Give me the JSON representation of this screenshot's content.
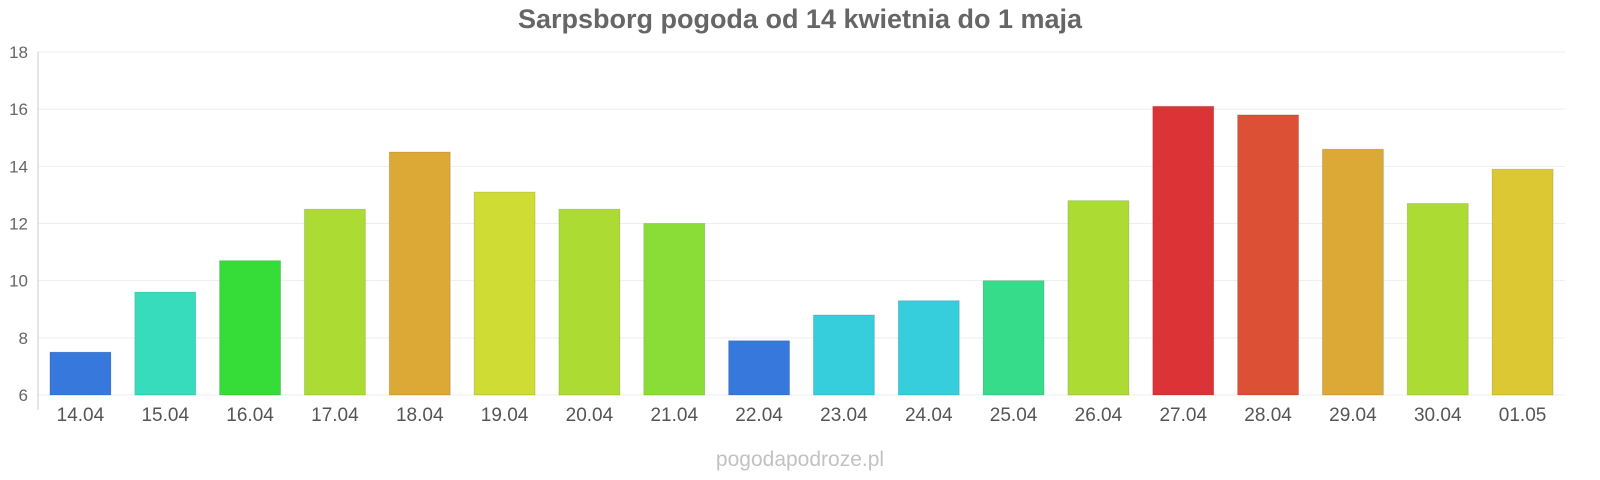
{
  "chart_data": {
    "type": "bar",
    "title": "Sarpsborg pogoda od 14 kwietnia do 1 maja",
    "xlabel": "",
    "ylabel": "",
    "ylim": [
      6,
      18
    ],
    "yticks": [
      "6",
      "8",
      "10",
      "12",
      "14",
      "16",
      "18"
    ],
    "grid": true,
    "legend": "none",
    "categories": [
      "14.04",
      "15.04",
      "16.04",
      "17.04",
      "18.04",
      "19.04",
      "20.04",
      "21.04",
      "22.04",
      "23.04",
      "24.04",
      "25.04",
      "26.04",
      "27.04",
      "28.04",
      "29.04",
      "30.04",
      "01.05"
    ],
    "values": [
      7.5,
      9.6,
      10.7,
      12.5,
      14.5,
      13.1,
      12.5,
      12.0,
      7.9,
      8.8,
      9.3,
      10.0,
      12.8,
      16.1,
      15.8,
      14.6,
      12.7,
      13.9
    ],
    "colors": [
      "#3678db",
      "#36dcbb",
      "#36dc38",
      "#acdc33",
      "#dca836",
      "#cedc33",
      "#acdc33",
      "#8adc36",
      "#3678db",
      "#36cedc",
      "#36cedc",
      "#36dc8a",
      "#acdc33",
      "#dc3336",
      "#dc5036",
      "#dca836",
      "#acdc33",
      "#dcc833"
    ]
  },
  "watermark": "pogodapodroze.pl"
}
